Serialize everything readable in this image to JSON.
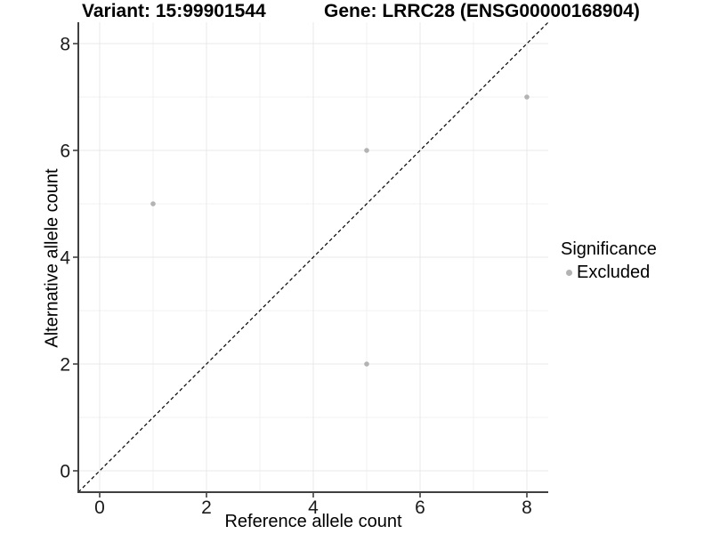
{
  "header": {
    "variant_title": "Variant: 15:99901544",
    "gene_title": "Gene: LRRC28 (ENSG00000168904)"
  },
  "colors": {
    "background": "#ffffff",
    "grid_major": "#e8e8e8",
    "grid_minor": "#f2f2f2",
    "axis_line": "#404040",
    "tick_mark": "#333333",
    "tick_text": "#1a1a1a",
    "point": "#b3b3b3",
    "identity_line": "#000000"
  },
  "chart_data": {
    "type": "scatter",
    "title": "Variant: 15:99901544   Gene: LRRC28 (ENSG00000168904)",
    "xlabel": "Reference allele count",
    "ylabel": "Alternative allele count",
    "xlim": [
      -0.4,
      8.4
    ],
    "ylim": [
      -0.4,
      8.4
    ],
    "x_ticks": [
      0,
      2,
      4,
      6,
      8
    ],
    "y_ticks": [
      0,
      2,
      4,
      6,
      8
    ],
    "grid": {
      "major": true,
      "minor": true
    },
    "identity_line": {
      "style": "dashed",
      "from": [
        -0.4,
        -0.4
      ],
      "to": [
        8.4,
        8.4
      ],
      "color": "#000000"
    },
    "series": [
      {
        "name": "Excluded",
        "color": "#b3b3b3",
        "points": [
          [
            1,
            5
          ],
          [
            5,
            6
          ],
          [
            5,
            2
          ],
          [
            8,
            7
          ]
        ]
      }
    ],
    "legend": {
      "title": "Significance",
      "position": "right",
      "items": [
        {
          "label": "Excluded",
          "color": "#b3b3b3"
        }
      ]
    }
  }
}
